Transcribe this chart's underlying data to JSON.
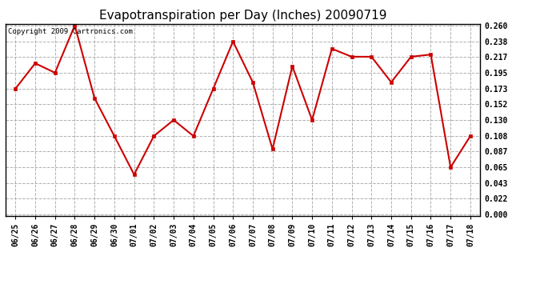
{
  "title": "Evapotranspiration per Day (Inches) 20090719",
  "copyright": "Copyright 2009 Cartronics.com",
  "x_labels": [
    "06/25",
    "06/26",
    "06/27",
    "06/28",
    "06/29",
    "06/30",
    "07/01",
    "07/02",
    "07/03",
    "07/04",
    "07/05",
    "07/06",
    "07/07",
    "07/08",
    "07/09",
    "07/10",
    "07/11",
    "07/12",
    "07/13",
    "07/14",
    "07/15",
    "07/16",
    "07/17",
    "07/18"
  ],
  "y_values": [
    0.173,
    0.208,
    0.195,
    0.26,
    0.16,
    0.108,
    0.055,
    0.108,
    0.13,
    0.108,
    0.173,
    0.238,
    0.182,
    0.09,
    0.204,
    0.13,
    0.228,
    0.217,
    0.217,
    0.182,
    0.217,
    0.22,
    0.065,
    0.108
  ],
  "y_min": 0.0,
  "y_max": 0.26,
  "y_ticks": [
    0.0,
    0.022,
    0.043,
    0.065,
    0.087,
    0.108,
    0.13,
    0.152,
    0.173,
    0.195,
    0.217,
    0.238,
    0.26
  ],
  "line_color": "#cc0000",
  "marker_color": "#cc0000",
  "bg_color": "#ffffff",
  "plot_bg_color": "#ffffff",
  "grid_color": "#b0b0b0",
  "title_fontsize": 11,
  "copyright_fontsize": 6.5,
  "tick_fontsize": 7,
  "ytick_fontsize": 7
}
